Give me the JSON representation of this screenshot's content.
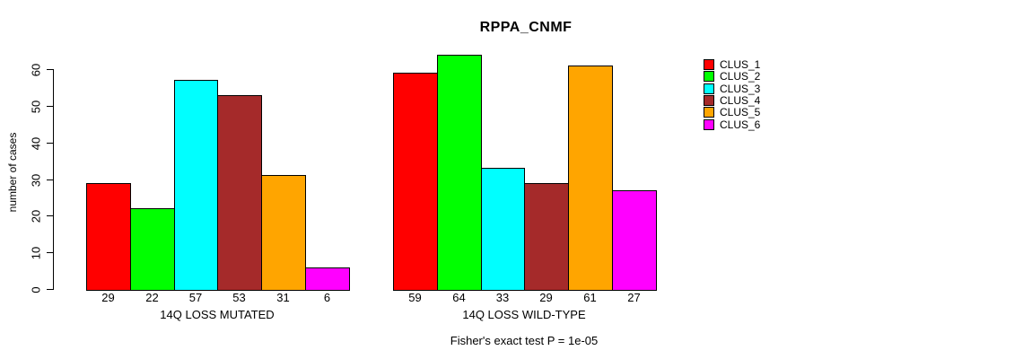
{
  "chart_data": {
    "type": "bar",
    "title": "RPPA_CNMF",
    "ylabel": "number of cases",
    "annotation": "Fisher's exact test P = 1e-05",
    "categories": [
      "14Q LOSS MUTATED",
      "14Q LOSS WILD-TYPE"
    ],
    "series": [
      {
        "name": "CLUS_1",
        "color": "#FF0000",
        "values": [
          29,
          59
        ]
      },
      {
        "name": "CLUS_2",
        "color": "#00FF00",
        "values": [
          22,
          64
        ]
      },
      {
        "name": "CLUS_3",
        "color": "#00FFFF",
        "values": [
          57,
          33
        ]
      },
      {
        "name": "CLUS_4",
        "color": "#A52A2A",
        "values": [
          53,
          29
        ]
      },
      {
        "name": "CLUS_5",
        "color": "#FFA500",
        "values": [
          31,
          61
        ]
      },
      {
        "name": "CLUS_6",
        "color": "#FF00FF",
        "values": [
          6,
          27
        ]
      }
    ],
    "bar_value_labels": [
      [
        "29",
        "22",
        "57",
        "53",
        "31",
        "6"
      ],
      [
        "59",
        "64",
        "33",
        "29",
        "61",
        "27"
      ]
    ],
    "ylim": [
      0,
      60
    ],
    "yticks": [
      0,
      10,
      20,
      30,
      40,
      50,
      60
    ],
    "grid": false,
    "legend_position": "right",
    "legend_entries": [
      "CLUS_1",
      "CLUS_2",
      "CLUS_3",
      "CLUS_4",
      "CLUS_5",
      "CLUS_6"
    ],
    "background": "#FFFFFF",
    "axis_color": "#000000"
  }
}
